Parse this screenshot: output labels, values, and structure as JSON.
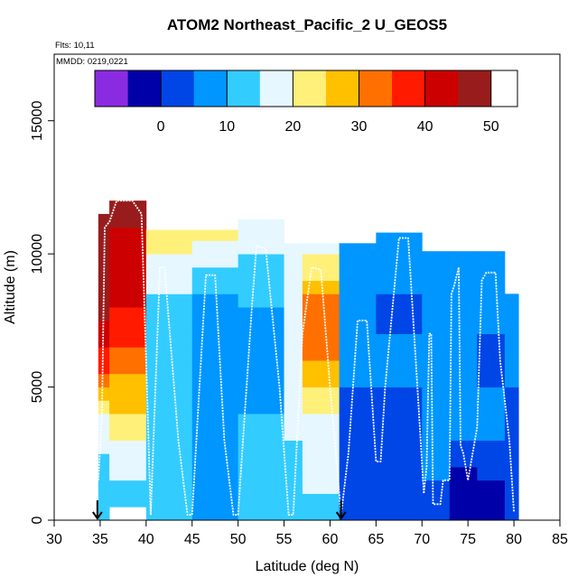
{
  "chart_data": {
    "type": "heatmap",
    "title": "ATOM2 Northeast_Pacific_2 U_GEOS5",
    "annotations": {
      "flights": "Flts: 10,11",
      "dates": "MMDD: 0219,0221"
    },
    "xlabel": "Latitude (deg N)",
    "ylabel": "Altitude (m)",
    "xlim": [
      30,
      85
    ],
    "ylim": [
      0,
      17500
    ],
    "x_ticks": [
      "30",
      "35",
      "40",
      "45",
      "50",
      "55",
      "60",
      "65",
      "70",
      "75",
      "80",
      "85"
    ],
    "y_ticks": [
      "0",
      "5000",
      "10000",
      "15000"
    ],
    "colorbar": {
      "ticks": [
        "0",
        "10",
        "20",
        "30",
        "40",
        "50"
      ],
      "tick_values": [
        0,
        10,
        20,
        30,
        40,
        50
      ],
      "range": [
        -10,
        54
      ],
      "colors": [
        "#8a2be2",
        "#0000a8",
        "#0046e6",
        "#0096ff",
        "#33ccff",
        "#e6f7ff",
        "#fff07a",
        "#ffc000",
        "#ff7000",
        "#ff1a00",
        "#cc0000",
        "#991c1c"
      ],
      "bin_edges": [
        -10,
        -5,
        0,
        5,
        10,
        15,
        20,
        25,
        30,
        35,
        40,
        45,
        50,
        54
      ]
    },
    "markers": [
      {
        "label": "start-arrow",
        "lat": 34.7
      },
      {
        "label": "end-arrow",
        "lat": 61.2
      }
    ],
    "columns": [
      {
        "lat": [
          34.8,
          36
        ],
        "top": 11500,
        "profile": [
          [
            0,
            12
          ],
          [
            1000,
            10
          ],
          [
            2500,
            14
          ],
          [
            4000,
            20
          ],
          [
            6000,
            38
          ],
          [
            8000,
            46
          ],
          [
            10000,
            52
          ],
          [
            11500,
            54
          ]
        ]
      },
      {
        "lat": [
          36,
          40
        ],
        "top": 12000,
        "profile": [
          [
            500,
            10
          ],
          [
            2000,
            16
          ],
          [
            4000,
            24
          ],
          [
            6000,
            32
          ],
          [
            8000,
            40
          ],
          [
            10000,
            44
          ],
          [
            12000,
            46
          ]
        ]
      },
      {
        "lat": [
          40,
          45
        ],
        "top": 10900,
        "profile": [
          [
            0,
            12
          ],
          [
            2000,
            12
          ],
          [
            4000,
            14
          ],
          [
            6000,
            12
          ],
          [
            8000,
            12
          ],
          [
            9500,
            18
          ],
          [
            10900,
            26
          ]
        ]
      },
      {
        "lat": [
          45,
          50
        ],
        "top": 10900,
        "profile": [
          [
            0,
            10
          ],
          [
            2000,
            8
          ],
          [
            4000,
            8
          ],
          [
            6000,
            6
          ],
          [
            8000,
            8
          ],
          [
            9500,
            14
          ],
          [
            10900,
            22
          ]
        ]
      },
      {
        "lat": [
          50,
          55
        ],
        "top": 11300,
        "profile": [
          [
            0,
            10
          ],
          [
            2000,
            12
          ],
          [
            4000,
            10
          ],
          [
            6000,
            8
          ],
          [
            8000,
            10
          ],
          [
            9500,
            14
          ],
          [
            11300,
            20
          ]
        ]
      },
      {
        "lat": [
          55,
          57
        ],
        "top": 10400,
        "profile": [
          [
            0,
            12
          ],
          [
            2000,
            14
          ],
          [
            4000,
            16
          ],
          [
            6000,
            20
          ],
          [
            8000,
            18
          ],
          [
            10400,
            16
          ]
        ]
      },
      {
        "lat": [
          57,
          61
        ],
        "top": 10400,
        "profile": [
          [
            0,
            14
          ],
          [
            2000,
            16
          ],
          [
            4000,
            20
          ],
          [
            5000,
            26
          ],
          [
            7000,
            34
          ],
          [
            8500,
            30
          ],
          [
            10000,
            18
          ],
          [
            10400,
            16
          ]
        ]
      },
      {
        "lat": [
          61,
          65
        ],
        "top": 10400,
        "profile": [
          [
            0,
            0
          ],
          [
            2000,
            2
          ],
          [
            4000,
            4
          ],
          [
            6000,
            6
          ],
          [
            8000,
            8
          ],
          [
            10400,
            10
          ]
        ]
      },
      {
        "lat": [
          65,
          70
        ],
        "top": 10800,
        "profile": [
          [
            0,
            0
          ],
          [
            2000,
            2
          ],
          [
            4000,
            4
          ],
          [
            6000,
            6
          ],
          [
            8000,
            4
          ],
          [
            10800,
            8
          ]
        ]
      },
      {
        "lat": [
          70,
          73
        ],
        "top": 10100,
        "profile": [
          [
            0,
            2
          ],
          [
            2000,
            6
          ],
          [
            4000,
            8
          ],
          [
            6000,
            8
          ],
          [
            8000,
            6
          ],
          [
            10100,
            6
          ]
        ]
      },
      {
        "lat": [
          73,
          76
        ],
        "top": 10100,
        "profile": [
          [
            0,
            -4
          ],
          [
            1500,
            -2
          ],
          [
            2500,
            4
          ],
          [
            4000,
            8
          ],
          [
            6000,
            8
          ],
          [
            8000,
            8
          ],
          [
            10100,
            8
          ]
        ]
      },
      {
        "lat": [
          76,
          79
        ],
        "top": 10100,
        "profile": [
          [
            0,
            -2
          ],
          [
            1500,
            0
          ],
          [
            2500,
            4
          ],
          [
            4000,
            6
          ],
          [
            6000,
            4
          ],
          [
            8000,
            6
          ],
          [
            10100,
            8
          ]
        ]
      },
      {
        "lat": [
          79,
          80.5
        ],
        "top": 8500,
        "profile": [
          [
            0,
            0
          ],
          [
            2000,
            2
          ],
          [
            4000,
            4
          ],
          [
            6000,
            6
          ],
          [
            8500,
            6
          ]
        ]
      }
    ],
    "flight_track": [
      [
        34.8,
        1500
      ],
      [
        35.2,
        4000
      ],
      [
        35.5,
        11000
      ],
      [
        36.0,
        11200
      ],
      [
        36.8,
        12000
      ],
      [
        38.5,
        12000
      ],
      [
        39.5,
        11500
      ],
      [
        40.0,
        6000
      ],
      [
        40.5,
        200
      ],
      [
        41.5,
        9500
      ],
      [
        42.0,
        9500
      ],
      [
        43.5,
        3000
      ],
      [
        44.5,
        200
      ],
      [
        45.0,
        200
      ],
      [
        46.5,
        9200
      ],
      [
        47.5,
        9200
      ],
      [
        48.5,
        3000
      ],
      [
        49.5,
        200
      ],
      [
        50.0,
        200
      ],
      [
        51.5,
        8000
      ],
      [
        52.0,
        10300
      ],
      [
        53.0,
        10200
      ],
      [
        54.5,
        5000
      ],
      [
        55.5,
        200
      ],
      [
        56.0,
        200
      ],
      [
        57.0,
        7000
      ],
      [
        58.0,
        9500
      ],
      [
        59.0,
        9400
      ],
      [
        60.0,
        5000
      ],
      [
        61.2,
        200
      ],
      [
        62.0,
        2500
      ],
      [
        62.5,
        5000
      ],
      [
        63.0,
        7500
      ],
      [
        64.0,
        7500
      ],
      [
        65.0,
        2200
      ],
      [
        65.5,
        2200
      ],
      [
        66.0,
        5000
      ],
      [
        67.5,
        10600
      ],
      [
        68.5,
        10600
      ],
      [
        69.5,
        5000
      ],
      [
        70.2,
        1000
      ],
      [
        70.5,
        2000
      ],
      [
        70.8,
        7000
      ],
      [
        71.0,
        7000
      ],
      [
        71.2,
        600
      ],
      [
        72.0,
        600
      ],
      [
        72.3,
        1500
      ],
      [
        73.0,
        1500
      ],
      [
        73.2,
        8500
      ],
      [
        73.5,
        8800
      ],
      [
        74.0,
        9500
      ],
      [
        74.2,
        2800
      ],
      [
        74.5,
        2500
      ],
      [
        75.0,
        1500
      ],
      [
        76.0,
        3500
      ],
      [
        76.5,
        9000
      ],
      [
        77.0,
        9300
      ],
      [
        78.0,
        9300
      ],
      [
        78.5,
        6000
      ],
      [
        79.5,
        3000
      ],
      [
        80.0,
        300
      ]
    ]
  }
}
